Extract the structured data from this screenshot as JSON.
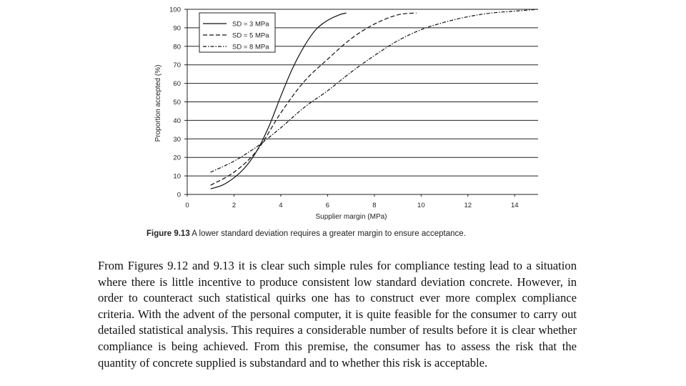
{
  "chart_data": {
    "type": "line",
    "title": "",
    "xlabel": "Supplier margin (MPa)",
    "ylabel": "Proportion accepted (%)",
    "xlim": [
      0,
      15
    ],
    "ylim": [
      0,
      100
    ],
    "xticks": [
      0,
      2,
      4,
      6,
      8,
      10,
      12,
      14
    ],
    "yticks": [
      0,
      10,
      20,
      30,
      40,
      50,
      60,
      70,
      80,
      90,
      100
    ],
    "grid": "horizontal",
    "legend_position": "top-left",
    "series": [
      {
        "name": "SD = 3 MPa",
        "style": "solid",
        "x": [
          1,
          1.5,
          2,
          2.5,
          3,
          3.5,
          4,
          4.5,
          5,
          5.5,
          6,
          6.5,
          6.8
        ],
        "y": [
          3,
          5,
          9,
          15,
          24,
          37,
          53,
          68,
          80,
          89,
          94,
          97,
          98
        ]
      },
      {
        "name": "SD = 5 MPa",
        "style": "dashed",
        "x": [
          1,
          2,
          3,
          4,
          5,
          6,
          7,
          8,
          9,
          9.8
        ],
        "y": [
          5,
          12,
          24,
          44,
          61,
          73,
          84,
          92,
          97,
          98
        ]
      },
      {
        "name": "SD = 8 MPa",
        "style": "dash-dot",
        "x": [
          1,
          2,
          3,
          4,
          5,
          6,
          7,
          8,
          9,
          10,
          11,
          12,
          13,
          14,
          15
        ],
        "y": [
          12,
          18,
          26,
          36,
          47,
          56,
          66,
          75,
          83,
          89,
          93,
          96,
          98,
          99,
          100
        ]
      }
    ]
  },
  "caption": {
    "label": "Figure 9.13",
    "text": " A lower standard deviation requires a greater margin to ensure acceptance."
  },
  "paragraph": "From Figures 9.12 and 9.13 it is clear such simple rules for compliance testing lead to a situation where there is little incentive to produce consistent low standard deviation concrete. However, in order to counteract such statistical quirks one has to construct ever more complex compliance criteria. With the advent of the personal computer, it is quite feasible for the consumer to carry out detailed statistical analysis. This requires a considerable number of results before it is clear whether compliance is being achieved. From this premise, the consumer has to assess the risk that the quantity of concrete supplied is substandard and to whether this risk is acceptable."
}
